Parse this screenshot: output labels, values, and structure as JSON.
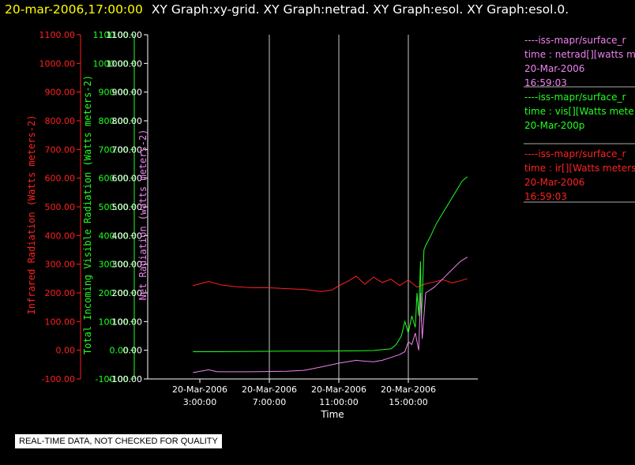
{
  "header": {
    "timestamp": "20-mar-2006,17:00:00",
    "graphs": "XY Graph:xy-grid.  XY Graph:netrad.  XY Graph:esol.  XY Graph:esol.0."
  },
  "colors": {
    "infrared": "#ff2020",
    "visible": "#20ff20",
    "net": "#ee82ee",
    "grid": "#c8c8c8",
    "axis": "#ffffff"
  },
  "chart_data": {
    "type": "line",
    "xlabel": "Time",
    "x_ticks": [
      {
        "date": "20-Mar-2006",
        "time": "3:00:00"
      },
      {
        "date": "20-Mar-2006",
        "time": "7:00:00"
      },
      {
        "date": "20-Mar-2006",
        "time": "11:00:00"
      },
      {
        "date": "20-Mar-2006",
        "time": "15:00:00"
      }
    ],
    "x_tick_hours": [
      3,
      7,
      11,
      15
    ],
    "xlim_hours": [
      0,
      19
    ],
    "vertical_gridlines_hours": [
      7,
      11,
      15
    ],
    "ylim": [
      -100,
      1100
    ],
    "y_ticks": [
      "1100.00",
      "1000.00",
      "900.00",
      "800.00",
      "700.00",
      "600.00",
      "500.00",
      "400.00",
      "300.00",
      "200.00",
      "100.00",
      "0.00",
      "-100.00"
    ],
    "y_axes": [
      {
        "label": "Infrared Radiation (Watts meters-2)",
        "color": "#ff2020"
      },
      {
        "label": "Total Incoming Visible Radiation (Watts meters-2)",
        "color": "#20ff20"
      },
      {
        "label": "Net Radiation (watts meters-2)",
        "color": "#ee82ee"
      }
    ],
    "series": [
      {
        "key": "infrared",
        "color": "#ff2020",
        "x": [
          2.6,
          3.5,
          4.2,
          5,
          6,
          7,
          8,
          9,
          10,
          10.6,
          11,
          11.5,
          12,
          12.5,
          13,
          13.5,
          14,
          14.5,
          15,
          15.5,
          16,
          16.5,
          17,
          17.5,
          18,
          18.4
        ],
        "y": [
          225,
          240,
          228,
          222,
          218,
          218,
          215,
          212,
          205,
          210,
          225,
          240,
          258,
          230,
          255,
          236,
          248,
          226,
          245,
          220,
          232,
          238,
          246,
          235,
          242,
          250
        ]
      },
      {
        "key": "visible",
        "color": "#20ff20",
        "x": [
          2.6,
          4,
          6,
          8,
          10,
          12,
          13,
          13.5,
          14,
          14.3,
          14.6,
          14.8,
          15,
          15.2,
          15.4,
          15.5,
          15.6,
          15.7,
          15.75,
          15.9,
          16,
          16.3,
          16.6,
          17,
          17.4,
          17.8,
          18.1,
          18.4
        ],
        "y": [
          -5,
          -5,
          -4,
          -3,
          -3,
          -2,
          -1,
          2,
          5,
          20,
          50,
          100,
          60,
          120,
          80,
          200,
          120,
          310,
          100,
          350,
          365,
          400,
          440,
          480,
          520,
          560,
          590,
          605
        ]
      },
      {
        "key": "net",
        "color": "#ee82ee",
        "x": [
          2.6,
          3.5,
          4,
          6,
          8,
          9,
          10,
          11,
          12,
          12.5,
          13,
          13.5,
          14,
          14.5,
          14.8,
          15,
          15.2,
          15.4,
          15.6,
          15.7,
          15.8,
          16,
          16.5,
          17,
          17.5,
          18,
          18.4
        ],
        "y": [
          -78,
          -68,
          -75,
          -75,
          -73,
          -70,
          -58,
          -45,
          -35,
          -38,
          -40,
          -35,
          -25,
          -15,
          -5,
          30,
          20,
          60,
          0,
          200,
          40,
          200,
          220,
          250,
          280,
          310,
          325
        ]
      }
    ]
  },
  "legend": [
    {
      "key": "netrad",
      "color": "#ee82ee",
      "lines": [
        "----iss-mapr/surface_r",
        "time : netrad[][watts m",
        "20-Mar-2006",
        "16:59:03"
      ]
    },
    {
      "key": "vis",
      "color": "#20ff20",
      "lines": [
        "----iss-mapr/surface_r",
        "time : vis[][Watts mete",
        "20-Mar-200p"
      ]
    },
    {
      "key": "ir",
      "color": "#ff2020",
      "lines": [
        "----iss-mapr/surface_r",
        "time : ir[][Watts meters",
        "20-Mar-2006",
        "16:59:03"
      ]
    }
  ],
  "footer": {
    "qc_note": "REAL-TIME DATA, NOT CHECKED FOR QUALITY"
  }
}
